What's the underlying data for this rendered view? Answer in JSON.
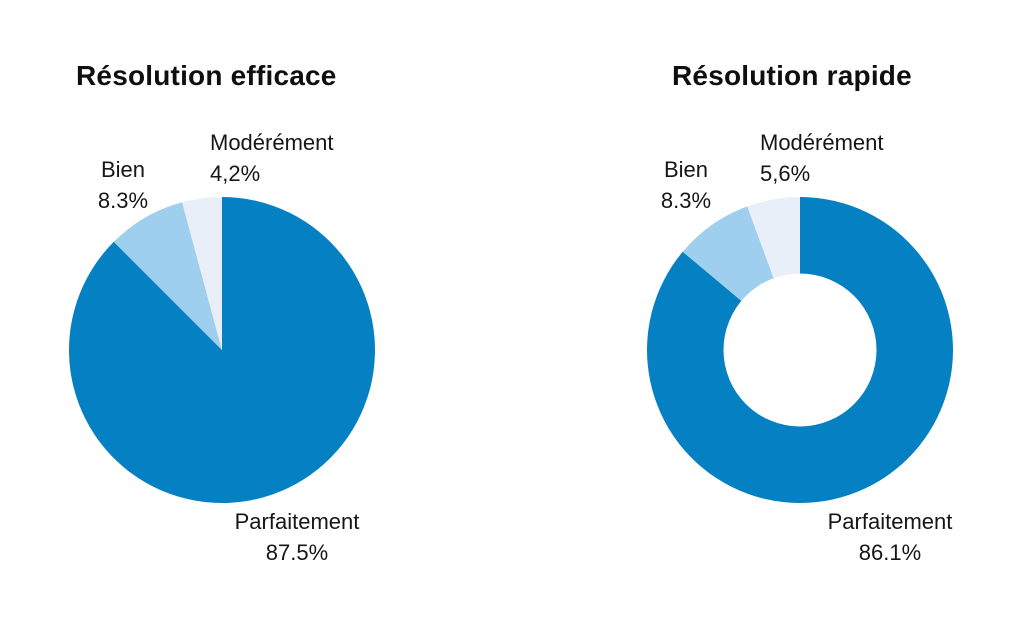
{
  "page": {
    "background_color": "#ffffff",
    "text_color": "#161616"
  },
  "chart_data": [
    {
      "type": "pie",
      "title": "Résolution efficace",
      "labels": [
        "Parfaitement",
        "Bien",
        "Modérément"
      ],
      "values": [
        87.5,
        8.3,
        4.2
      ],
      "value_labels": [
        "87.5%",
        "8.3%",
        "4,2%"
      ],
      "colors": [
        "#0580c2",
        "#9ecfee",
        "#e8eff8"
      ],
      "start_angle_deg": 0,
      "direction": "clockwise",
      "label_position": "outside",
      "legend": "none"
    },
    {
      "type": "donut",
      "title": "Résolution rapide",
      "labels": [
        "Parfaitement",
        "Bien",
        "Modérément"
      ],
      "values": [
        86.1,
        8.3,
        5.6
      ],
      "value_labels": [
        "86.1%",
        "8.3%",
        "5,6%"
      ],
      "colors": [
        "#0580c2",
        "#9ecfee",
        "#e8eff8"
      ],
      "inner_radius_ratio": 0.5,
      "hole_color": "#ffffff",
      "start_angle_deg": 0,
      "direction": "clockwise",
      "label_position": "outside",
      "legend": "none"
    }
  ]
}
